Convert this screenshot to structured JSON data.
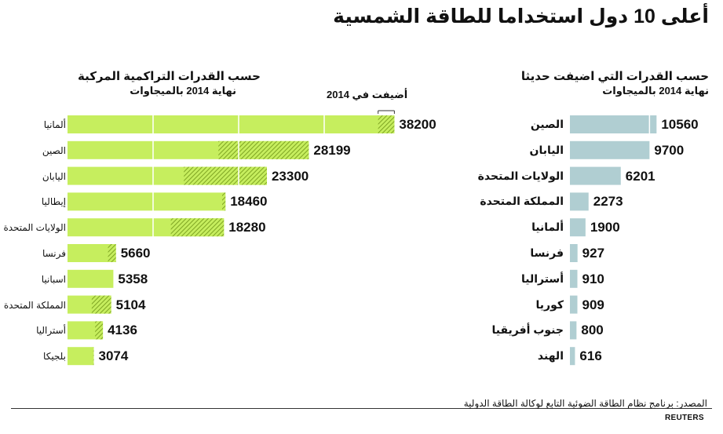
{
  "title": "أعلى 10 دول استخداما للطاقة الشمسية",
  "source": "المصدر: برنامج نظام الطاقة الضوئية التابع لوكالة الطاقة الدولية",
  "brand": "REUTERS",
  "colors": {
    "green": "#c6ee5e",
    "hatch": "#8fb82a",
    "blue": "#b0ced2",
    "gridline": "#ffffff"
  },
  "chart_data": [
    {
      "type": "bar",
      "title": "حسب القدرات التراكمية المركبة",
      "subtitle": "نهاية 2014 بالميجاوات",
      "annotation": "أضيفت في 2014",
      "categories": [
        "ألمانيا",
        "الصين",
        "اليابان",
        "إيطاليا",
        "الولايات المتحدة",
        "فرنسا",
        "اسبانيا",
        "المملكة المتحدة",
        "أستراليا",
        "بلجيكا"
      ],
      "series": [
        {
          "name": "أضيفت في 2014",
          "values": [
            1900,
            10560,
            9700,
            385,
            6201,
            927,
            0,
            2273,
            910,
            65
          ]
        }
      ],
      "values": [
        38200,
        28199,
        23300,
        18460,
        18280,
        5660,
        5358,
        5104,
        4136,
        3074
      ],
      "xlim": [
        0,
        45000
      ]
    },
    {
      "type": "bar",
      "title": "حسب القدرات التي اضيفت حديثا",
      "subtitle": "نهاية 2014 بالميجاوات",
      "categories": [
        "الصين",
        "اليابان",
        "الولايات المتحدة",
        "المملكة المتحدة",
        "ألمانيا",
        "فرنسا",
        "أستراليا",
        "كوريا",
        "جنوب أفريقيا",
        "الهند"
      ],
      "values": [
        10560,
        9700,
        6201,
        2273,
        1900,
        927,
        910,
        909,
        800,
        616
      ],
      "xlim": [
        0,
        12000
      ]
    }
  ]
}
